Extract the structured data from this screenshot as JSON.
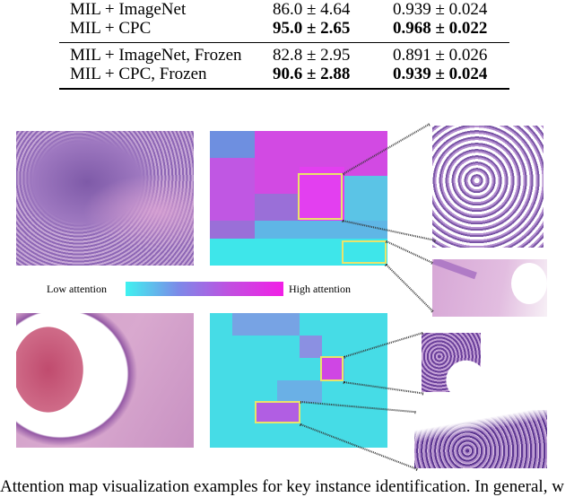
{
  "table": {
    "rows": [
      {
        "method": "MIL + ImageNet",
        "acc": "86.0 ± 4.64",
        "auc": "0.939 ± 0.024",
        "bold": false
      },
      {
        "method": "MIL + CPC",
        "acc": "95.0 ± 2.65",
        "auc": "0.968 ± 0.022",
        "bold": true
      },
      {
        "method": "MIL + ImageNet, Frozen",
        "acc": "82.8 ± 2.95",
        "auc": "0.891 ± 0.026",
        "bold": false
      },
      {
        "method": "MIL + CPC, Frozen",
        "acc": "90.6 ± 2.88",
        "auc": "0.939 ± 0.024",
        "bold": true
      }
    ]
  },
  "colorbar": {
    "low_label": "Low attention",
    "high_label": "High attention",
    "colors": [
      "#3ff2f0",
      "#7c8ae8",
      "#c24ee0",
      "#f21fe6"
    ]
  },
  "caption_fragment": "Attention map visualization examples for key instance identification. In general, w",
  "highlight_color": "#e9e36a"
}
